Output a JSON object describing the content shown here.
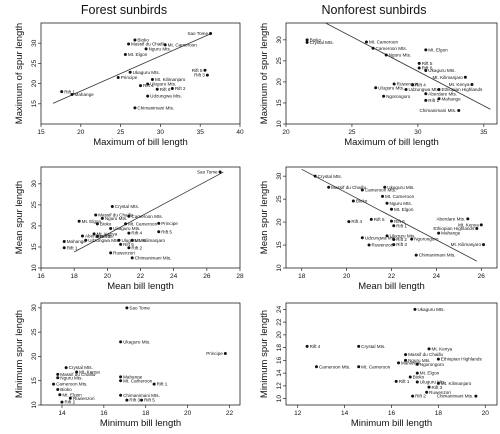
{
  "figure": {
    "columns": [
      "Forest sunbirds",
      "Nonforest sunbirds"
    ]
  },
  "chart_data": [
    {
      "type": "scatter",
      "column": "Forest sunbirds",
      "xlabel": "Maximum of bill length",
      "ylabel": "Maximum of spur length",
      "xlim": [
        15,
        40
      ],
      "ylim": [
        10,
        35
      ],
      "xticks": [
        15,
        20,
        25,
        30,
        35,
        40
      ],
      "yticks": [
        15,
        20,
        25,
        30
      ],
      "fit": {
        "x1": 16.5,
        "y1": 15.1,
        "x2": 36.5,
        "y2": 32.5
      },
      "points": [
        {
          "label": "Sao Tome",
          "x": 36.3,
          "y": 32.4
        },
        {
          "label": "Bioko",
          "x": 26.8,
          "y": 30.8
        },
        {
          "label": "Massif du Chaillu",
          "x": 26.0,
          "y": 29.8
        },
        {
          "label": "Mt. Cameroon",
          "x": 30.6,
          "y": 29.6
        },
        {
          "label": "Nguru Mts.",
          "x": 28.2,
          "y": 28.6
        },
        {
          "label": "Mt. Elgon",
          "x": 25.6,
          "y": 27.2
        },
        {
          "label": "Rift 5",
          "x": 35.6,
          "y": 23.3
        },
        {
          "label": "Rift 3",
          "x": 35.9,
          "y": 22.1
        },
        {
          "label": "Ukaguru Mts.",
          "x": 26.2,
          "y": 22.8
        },
        {
          "label": "Principe",
          "x": 24.7,
          "y": 21.5
        },
        {
          "label": "Mt. Kilimanjaro",
          "x": 29.0,
          "y": 21.0
        },
        {
          "label": "Uluguru Mts.",
          "x": 28.4,
          "y": 19.9
        },
        {
          "label": "Rift 4",
          "x": 27.5,
          "y": 19.5
        },
        {
          "label": "Rift 2",
          "x": 31.5,
          "y": 18.8
        },
        {
          "label": "Rift 6",
          "x": 29.6,
          "y": 18.6
        },
        {
          "label": "Rift 1",
          "x": 17.6,
          "y": 18.0
        },
        {
          "label": "Mahange",
          "x": 18.9,
          "y": 17.3
        },
        {
          "label": "Udzungwa Mts.",
          "x": 28.4,
          "y": 16.9
        },
        {
          "label": "Chimanimani Mts.",
          "x": 26.8,
          "y": 14.0
        }
      ]
    },
    {
      "type": "scatter",
      "column": "Nonforest sunbirds",
      "xlabel": "Maximum of bill length",
      "ylabel": "Maximum of spur length",
      "xlim": [
        20,
        36
      ],
      "ylim": [
        10,
        34
      ],
      "xticks": [
        20,
        25,
        30,
        35
      ],
      "yticks": [
        10,
        15,
        20,
        25,
        30
      ],
      "fit": {
        "x1": 23.0,
        "y1": 34.0,
        "x2": 35.5,
        "y2": 13.5
      },
      "points": [
        {
          "label": "Bioko",
          "x": 21.6,
          "y": 30.0
        },
        {
          "label": "Crystal Mts.",
          "x": 21.6,
          "y": 29.4
        },
        {
          "label": "Mt. Cameroon",
          "x": 26.1,
          "y": 29.5
        },
        {
          "label": "Cameroon Mts.",
          "x": 26.6,
          "y": 28.0
        },
        {
          "label": "Nguru Mts.",
          "x": 27.6,
          "y": 26.4
        },
        {
          "label": "Mt. Elgon",
          "x": 30.6,
          "y": 27.6
        },
        {
          "label": "Rift 5",
          "x": 30.1,
          "y": 24.4
        },
        {
          "label": "Rift 6",
          "x": 30.1,
          "y": 23.3
        },
        {
          "label": "Ukaguru Mts.",
          "x": 30.6,
          "y": 22.7
        },
        {
          "label": "Mt. Kilimanjaro",
          "x": 33.6,
          "y": 21.1
        },
        {
          "label": "Mt. Kenya",
          "x": 34.1,
          "y": 19.4
        },
        {
          "label": "Rift 4",
          "x": 29.6,
          "y": 19.3
        },
        {
          "label": "Ruwenzori",
          "x": 28.2,
          "y": 19.5
        },
        {
          "label": "Uluguru Mts.",
          "x": 26.8,
          "y": 18.6
        },
        {
          "label": "Udzungwa Mts.",
          "x": 29.1,
          "y": 18.2
        },
        {
          "label": "Ethiopian Highlands",
          "x": 31.6,
          "y": 18.2
        },
        {
          "label": "Aberdare Mts.",
          "x": 30.6,
          "y": 17.2
        },
        {
          "label": "Ngorongoro",
          "x": 27.4,
          "y": 16.6
        },
        {
          "label": "Rift 1",
          "x": 30.6,
          "y": 15.6
        },
        {
          "label": "Mahange",
          "x": 31.6,
          "y": 16.0
        },
        {
          "label": "Chimanimani Mts.",
          "x": 33.1,
          "y": 13.2
        }
      ]
    },
    {
      "type": "scatter",
      "column": "Forest sunbirds",
      "xlabel": "Mean bill length",
      "ylabel": "Mean spur length",
      "xlim": [
        16,
        28
      ],
      "ylim": [
        10,
        34
      ],
      "xticks": [
        16,
        18,
        20,
        22,
        24,
        26,
        28
      ],
      "yticks": [
        10,
        15,
        20,
        25,
        30
      ],
      "fit": {
        "x1": 18.0,
        "y1": 13.8,
        "x2": 27.0,
        "y2": 32.8
      },
      "points": [
        {
          "label": "Sao Tome",
          "x": 26.8,
          "y": 32.8
        },
        {
          "label": "Crystal Mts.",
          "x": 20.3,
          "y": 24.6
        },
        {
          "label": "Massif du Chaillu",
          "x": 19.3,
          "y": 22.6
        },
        {
          "label": "Cameroon Mts.",
          "x": 21.3,
          "y": 22.3
        },
        {
          "label": "Nguru Mts.",
          "x": 19.7,
          "y": 21.8
        },
        {
          "label": "Mt. Elgon",
          "x": 18.3,
          "y": 21.1
        },
        {
          "label": "Bioko",
          "x": 19.4,
          "y": 20.5
        },
        {
          "label": "Mt. Cameroon",
          "x": 21.1,
          "y": 20.5
        },
        {
          "label": "Principe",
          "x": 23.1,
          "y": 20.6
        },
        {
          "label": "Ukaguru Mts.",
          "x": 20.2,
          "y": 19.4
        },
        {
          "label": "Rift 5",
          "x": 23.1,
          "y": 18.6
        },
        {
          "label": "Mt. Kenya",
          "x": 19.2,
          "y": 18.1
        },
        {
          "label": "Aberdare Mts.",
          "x": 18.5,
          "y": 17.6
        },
        {
          "label": "Rift 3",
          "x": 19.4,
          "y": 17.5
        },
        {
          "label": "Rift 4",
          "x": 21.3,
          "y": 18.3
        },
        {
          "label": "Mahange",
          "x": 17.4,
          "y": 16.3
        },
        {
          "label": "Udzungwa Mts.",
          "x": 18.7,
          "y": 16.6
        },
        {
          "label": "Uluguru Mts.",
          "x": 20.7,
          "y": 16.6
        },
        {
          "label": "Mt. Kilimanjaro",
          "x": 21.5,
          "y": 16.6
        },
        {
          "label": "Rift 1",
          "x": 17.4,
          "y": 14.8
        },
        {
          "label": "Rift 6",
          "x": 20.8,
          "y": 15.6
        },
        {
          "label": "Rift 2",
          "x": 21.3,
          "y": 14.8
        },
        {
          "label": "Ruwenzori",
          "x": 20.2,
          "y": 13.6
        },
        {
          "label": "Chimanimani Mts.",
          "x": 21.5,
          "y": 12.4
        }
      ]
    },
    {
      "type": "scatter",
      "column": "Nonforest sunbirds",
      "xlabel": "Mean bill length",
      "ylabel": "Mean spur length",
      "xlim": [
        17.3,
        26.7
      ],
      "ylim": [
        10,
        32
      ],
      "xticks": [
        18,
        20,
        22,
        24,
        26
      ],
      "yticks": [
        10,
        15,
        20,
        25,
        30
      ],
      "fit": {
        "x1": 18.0,
        "y1": 31.5,
        "x2": 25.8,
        "y2": 11.5
      },
      "points": [
        {
          "label": "Crystal Mts.",
          "x": 18.6,
          "y": 30.0
        },
        {
          "label": "Massif du Chaillu",
          "x": 19.2,
          "y": 27.6
        },
        {
          "label": "Cameroon Mts.",
          "x": 20.7,
          "y": 27.0
        },
        {
          "label": "Ukaguru Mts.",
          "x": 21.7,
          "y": 27.6
        },
        {
          "label": "Mt. Cameroon",
          "x": 21.6,
          "y": 25.6
        },
        {
          "label": "Bioko",
          "x": 20.3,
          "y": 24.6
        },
        {
          "label": "Nguru Mts.",
          "x": 21.8,
          "y": 24.1
        },
        {
          "label": "Mt. Elgon",
          "x": 22.0,
          "y": 22.8
        },
        {
          "label": "Rift 5",
          "x": 21.1,
          "y": 20.6
        },
        {
          "label": "Rift 4",
          "x": 20.1,
          "y": 20.1
        },
        {
          "label": "Rift 6",
          "x": 22.0,
          "y": 20.2
        },
        {
          "label": "Rift 1",
          "x": 22.1,
          "y": 19.2
        },
        {
          "label": "Aberdare Mts.",
          "x": 25.4,
          "y": 20.7
        },
        {
          "label": "Mt. Kenya",
          "x": 26.0,
          "y": 19.4
        },
        {
          "label": "Ethiopian Highlands",
          "x": 25.8,
          "y": 18.6
        },
        {
          "label": "Mahange",
          "x": 24.1,
          "y": 17.6
        },
        {
          "label": "Udzungwa Mts.",
          "x": 20.7,
          "y": 16.6
        },
        {
          "label": "Uluguru Mts.",
          "x": 21.8,
          "y": 17.0
        },
        {
          "label": "Ngorongoro",
          "x": 22.9,
          "y": 16.3
        },
        {
          "label": "Rift 2",
          "x": 22.1,
          "y": 16.2
        },
        {
          "label": "Rift 3",
          "x": 22.1,
          "y": 15.1
        },
        {
          "label": "Ruwenzori",
          "x": 21.0,
          "y": 15.0
        },
        {
          "label": "Mt. Kilimanjaro",
          "x": 26.1,
          "y": 15.1
        },
        {
          "label": "Chimanimani Mts.",
          "x": 23.1,
          "y": 12.8
        }
      ]
    },
    {
      "type": "scatter",
      "column": "Forest sunbirds",
      "xlabel": "Minimum bill length",
      "ylabel": "Minimum spur length",
      "xlim": [
        13,
        22.5
      ],
      "ylim": [
        10,
        31
      ],
      "xticks": [
        14,
        16,
        18,
        20,
        22
      ],
      "yticks": [
        10,
        15,
        20,
        25,
        30
      ],
      "points": [
        {
          "label": "Sao Tome",
          "x": 17.1,
          "y": 30.0
        },
        {
          "label": "Ukaguru Mts.",
          "x": 16.8,
          "y": 23.0
        },
        {
          "label": "Principe",
          "x": 21.8,
          "y": 20.6
        },
        {
          "label": "Crystal Mts.",
          "x": 14.2,
          "y": 17.7
        },
        {
          "label": "Mt. Kenya",
          "x": 14.7,
          "y": 16.8
        },
        {
          "label": "Massif du Chaillu",
          "x": 13.8,
          "y": 16.3
        },
        {
          "label": "Nguru Mts.",
          "x": 13.8,
          "y": 15.6
        },
        {
          "label": "Mahange",
          "x": 16.8,
          "y": 15.8
        },
        {
          "label": "Mt. Cameroon",
          "x": 16.8,
          "y": 15.0
        },
        {
          "label": "Cameroon Mts.",
          "x": 13.6,
          "y": 14.3
        },
        {
          "label": "Rift 1",
          "x": 18.4,
          "y": 14.3
        },
        {
          "label": "Bioko",
          "x": 13.8,
          "y": 13.2
        },
        {
          "label": "Mt. Elgon",
          "x": 13.9,
          "y": 12.1
        },
        {
          "label": "Ruwenzori",
          "x": 14.4,
          "y": 11.4
        },
        {
          "label": "Chimanimani Mts.",
          "x": 16.8,
          "y": 12.0
        },
        {
          "label": "Rift 3",
          "x": 17.1,
          "y": 11.0
        },
        {
          "label": "Rift 5",
          "x": 17.8,
          "y": 11.0
        },
        {
          "label": "Rift 2",
          "x": 14.0,
          "y": 10.6
        }
      ]
    },
    {
      "type": "scatter",
      "column": "Nonforest sunbirds",
      "xlabel": "Minimum bill length",
      "ylabel": "Minimum spur length",
      "xlim": [
        11.5,
        20.5
      ],
      "ylim": [
        9,
        25
      ],
      "xticks": [
        12,
        14,
        16,
        18,
        20
      ],
      "yticks": [
        10,
        12,
        14,
        16,
        18,
        20,
        22,
        24
      ],
      "points": [
        {
          "label": "Ukaguru Mts.",
          "x": 17.0,
          "y": 24.0
        },
        {
          "label": "Rift 4",
          "x": 12.4,
          "y": 18.2
        },
        {
          "label": "Crystal Mts.",
          "x": 14.6,
          "y": 18.2
        },
        {
          "label": "Mt. Kenya",
          "x": 17.6,
          "y": 17.8
        },
        {
          "label": "Massif du Chaillu",
          "x": 16.6,
          "y": 16.9
        },
        {
          "label": "Nguru Mts.",
          "x": 16.6,
          "y": 16.0
        },
        {
          "label": "Ethiopian Highlands",
          "x": 18.0,
          "y": 16.2
        },
        {
          "label": "Mahange",
          "x": 16.3,
          "y": 15.6
        },
        {
          "label": "Ngorongoro",
          "x": 17.1,
          "y": 15.4
        },
        {
          "label": "Cameroon Mts.",
          "x": 12.8,
          "y": 15.0
        },
        {
          "label": "Mt. Cameroon",
          "x": 14.6,
          "y": 15.0
        },
        {
          "label": "Mt. Elgon",
          "x": 17.1,
          "y": 14.0
        },
        {
          "label": "Bioko",
          "x": 16.8,
          "y": 13.4
        },
        {
          "label": "Rift 1",
          "x": 16.2,
          "y": 12.7
        },
        {
          "label": "Uluguru Mts.",
          "x": 17.1,
          "y": 12.6
        },
        {
          "label": "Mt. Kilimanjaro",
          "x": 18.0,
          "y": 12.4
        },
        {
          "label": "Rift 3",
          "x": 17.6,
          "y": 11.8
        },
        {
          "label": "Ruwenzori",
          "x": 17.5,
          "y": 11.0
        },
        {
          "label": "Rift 2",
          "x": 16.9,
          "y": 10.4
        },
        {
          "label": "Chimanimani Mts.",
          "x": 19.6,
          "y": 10.4
        }
      ]
    }
  ]
}
